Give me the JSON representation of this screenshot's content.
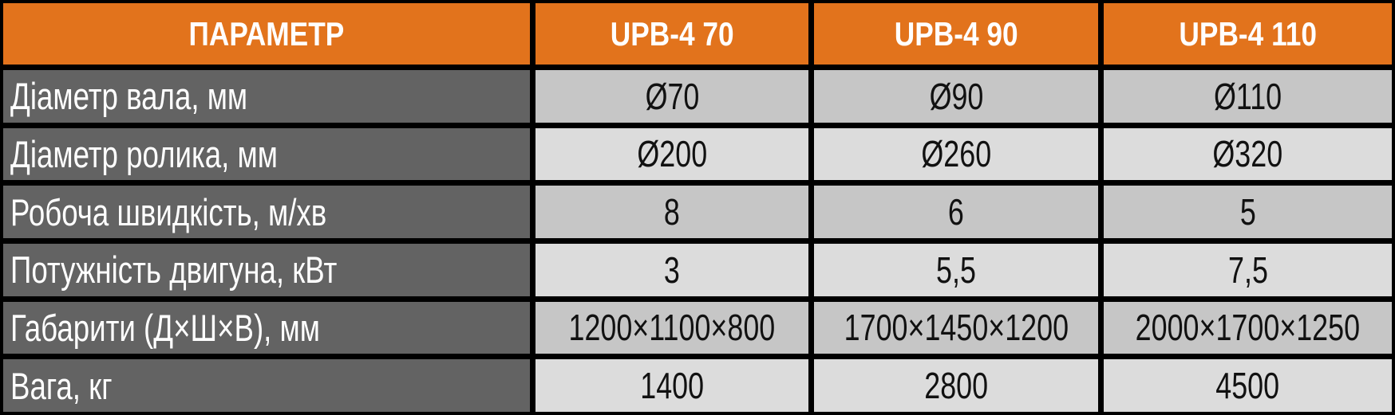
{
  "chart_data": {
    "type": "table",
    "title": "",
    "columns": [
      "ПАРАМЕТР",
      "UPB-4 70",
      "UPB-4 90",
      "UPB-4 110"
    ],
    "rows": [
      {
        "label": "Діаметр вала, мм",
        "values": [
          "Ø70",
          "Ø90",
          "Ø110"
        ]
      },
      {
        "label": "Діаметр ролика, мм",
        "values": [
          "Ø200",
          "Ø260",
          "Ø320"
        ]
      },
      {
        "label": "Робоча швидкість, м/хв",
        "values": [
          "8",
          "6",
          "5"
        ]
      },
      {
        "label": "Потужність двигуна, кВт",
        "values": [
          "3",
          "5,5",
          "7,5"
        ]
      },
      {
        "label": "Габарити (Д×Ш×В), мм",
        "values": [
          "1200×1100×800",
          "1700×1450×1200",
          "2000×1700×1250"
        ]
      },
      {
        "label": "Вага, кг",
        "values": [
          "1400",
          "2800",
          "4500"
        ]
      }
    ]
  },
  "table": {
    "header": {
      "param_label": "ПАРАМЕТР",
      "model_1": "UPB-4 70",
      "model_2": "UPB-4 90",
      "model_3": "UPB-4 110"
    },
    "rows": [
      {
        "label": "Діаметр вала, мм",
        "v1": "Ø70",
        "v2": "Ø90",
        "v3": "Ø110"
      },
      {
        "label": "Діаметр ролика, мм",
        "v1": "Ø200",
        "v2": "Ø260",
        "v3": "Ø320"
      },
      {
        "label": "Робоча швидкість, м/хв",
        "v1": "8",
        "v2": "6",
        "v3": "5"
      },
      {
        "label": "Потужність двигуна, кВт",
        "v1": "3",
        "v2": "5,5",
        "v3": "7,5"
      },
      {
        "label": "Габарити (Д×Ш×В), мм",
        "v1": "1200×1100×800",
        "v2": "1700×1450×1200",
        "v3": "2000×1700×1250"
      },
      {
        "label": "Вага, кг",
        "v1": "1400",
        "v2": "2800",
        "v3": "4500"
      }
    ],
    "colors": {
      "header_bg": "#E2731C",
      "label_bg": "#636363",
      "row_odd_bg": "#C6C6C6",
      "row_even_bg": "#DCDCDC",
      "border": "#000000",
      "header_text": "#FFFFFF",
      "label_text": "#FFFFFF",
      "value_text": "#111111"
    }
  }
}
